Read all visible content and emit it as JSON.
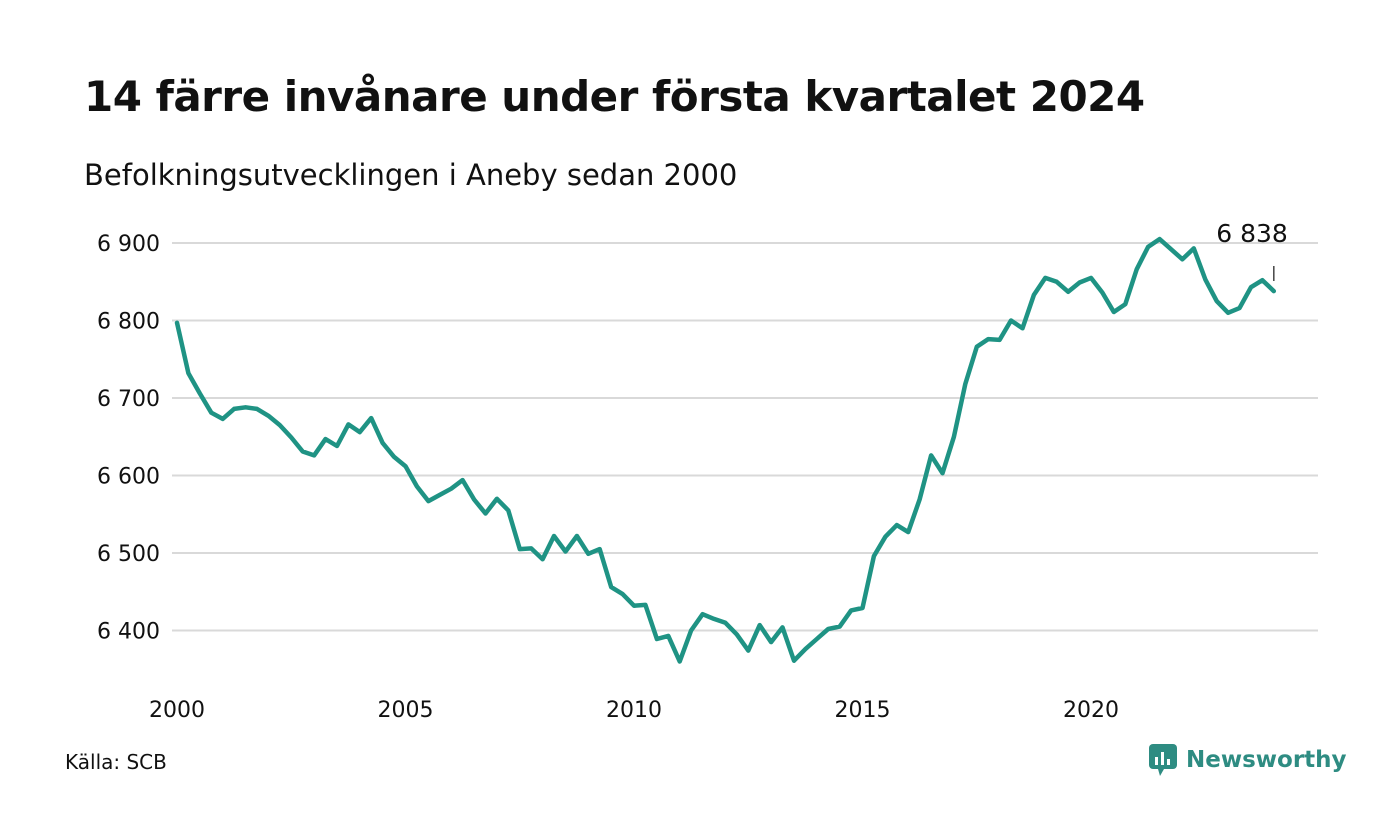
{
  "title": "14 färre invånare under första kvartalet 2024",
  "subtitle": "Befolkningsutvecklingen i Aneby sedan 2000",
  "source": "Källa: SCB",
  "brand": {
    "name": "Newsworthy",
    "icon": "newsworthy-logo-icon",
    "color": "#2e8c82"
  },
  "colors": {
    "line": "#1f9384",
    "grid": "#d9d9d9",
    "text": "#111111"
  },
  "chart_data": {
    "type": "line",
    "title": "14 färre invånare under första kvartalet 2024",
    "subtitle": "Befolkningsutvecklingen i Aneby sedan 2000",
    "xlabel": "",
    "ylabel": "",
    "x_ticks": [
      2000,
      2005,
      2010,
      2015,
      2020
    ],
    "y_ticks": [
      6400,
      6500,
      6600,
      6700,
      6800,
      6900
    ],
    "y_tick_labels": [
      "6 400",
      "6 500",
      "6 600",
      "6 700",
      "6 800",
      "6 900"
    ],
    "xlim": [
      2000,
      2024.25
    ],
    "ylim": [
      6345,
      6915
    ],
    "grid": "horizontal",
    "last_value_label": "6 838",
    "series": [
      {
        "values": [
          [
            2000.0,
            6797
          ],
          [
            2000.25,
            6732
          ],
          [
            2000.5,
            6706
          ],
          [
            2000.75,
            6681
          ],
          [
            2001.0,
            6673
          ],
          [
            2001.25,
            6686
          ],
          [
            2001.5,
            6688
          ],
          [
            2001.75,
            6686
          ],
          [
            2002.0,
            6677
          ],
          [
            2002.25,
            6665
          ],
          [
            2002.5,
            6649
          ],
          [
            2002.75,
            6631
          ],
          [
            2003.0,
            6626
          ],
          [
            2003.25,
            6647
          ],
          [
            2003.5,
            6638
          ],
          [
            2003.75,
            6666
          ],
          [
            2004.0,
            6656
          ],
          [
            2004.25,
            6674
          ],
          [
            2004.5,
            6642
          ],
          [
            2004.75,
            6624
          ],
          [
            2005.0,
            6612
          ],
          [
            2005.25,
            6586
          ],
          [
            2005.5,
            6567
          ],
          [
            2005.75,
            6575
          ],
          [
            2006.0,
            6583
          ],
          [
            2006.25,
            6594
          ],
          [
            2006.5,
            6569
          ],
          [
            2006.75,
            6551
          ],
          [
            2007.0,
            6570
          ],
          [
            2007.25,
            6555
          ],
          [
            2007.5,
            6505
          ],
          [
            2007.75,
            6506
          ],
          [
            2008.0,
            6492
          ],
          [
            2008.25,
            6522
          ],
          [
            2008.5,
            6502
          ],
          [
            2008.75,
            6522
          ],
          [
            2009.0,
            6499
          ],
          [
            2009.25,
            6505
          ],
          [
            2009.5,
            6456
          ],
          [
            2009.75,
            6447
          ],
          [
            2010.0,
            6432
          ],
          [
            2010.25,
            6433
          ],
          [
            2010.5,
            6389
          ],
          [
            2010.75,
            6393
          ],
          [
            2011.0,
            6360
          ],
          [
            2011.25,
            6400
          ],
          [
            2011.5,
            6421
          ],
          [
            2011.75,
            6415
          ],
          [
            2012.0,
            6410
          ],
          [
            2012.25,
            6395
          ],
          [
            2012.5,
            6374
          ],
          [
            2012.75,
            6407
          ],
          [
            2013.0,
            6385
          ],
          [
            2013.25,
            6404
          ],
          [
            2013.5,
            6361
          ],
          [
            2013.75,
            6376
          ],
          [
            2014.0,
            6389
          ],
          [
            2014.25,
            6402
          ],
          [
            2014.5,
            6405
          ],
          [
            2014.75,
            6426
          ],
          [
            2015.0,
            6429
          ],
          [
            2015.25,
            6496
          ],
          [
            2015.5,
            6521
          ],
          [
            2015.75,
            6536
          ],
          [
            2016.0,
            6527
          ],
          [
            2016.25,
            6569
          ],
          [
            2016.5,
            6626
          ],
          [
            2016.75,
            6603
          ],
          [
            2017.0,
            6650
          ],
          [
            2017.25,
            6718
          ],
          [
            2017.5,
            6766
          ],
          [
            2017.75,
            6776
          ],
          [
            2018.0,
            6775
          ],
          [
            2018.25,
            6800
          ],
          [
            2018.5,
            6790
          ],
          [
            2018.75,
            6833
          ],
          [
            2019.0,
            6855
          ],
          [
            2019.25,
            6850
          ],
          [
            2019.5,
            6837
          ],
          [
            2019.75,
            6849
          ],
          [
            2020.0,
            6855
          ],
          [
            2020.25,
            6836
          ],
          [
            2020.5,
            6811
          ],
          [
            2020.75,
            6821
          ],
          [
            2021.0,
            6866
          ],
          [
            2021.25,
            6895
          ],
          [
            2021.5,
            6905
          ],
          [
            2021.75,
            6892
          ],
          [
            2022.0,
            6879
          ],
          [
            2022.25,
            6893
          ],
          [
            2022.5,
            6853
          ],
          [
            2022.75,
            6825
          ],
          [
            2023.0,
            6810
          ],
          [
            2023.25,
            6816
          ],
          [
            2023.5,
            6843
          ],
          [
            2023.75,
            6852
          ],
          [
            2024.0,
            6838
          ]
        ]
      }
    ]
  }
}
